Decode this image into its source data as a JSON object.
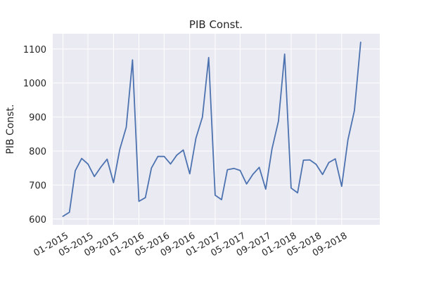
{
  "chart_data": {
    "type": "line",
    "title": "PIB Const.",
    "xlabel": "",
    "ylabel": "PIB Const.",
    "grid": true,
    "ylim": [
      583,
      1145
    ],
    "xlim": [
      "2014-11-13",
      "2019-03-03"
    ],
    "y_ticks": [
      600,
      700,
      800,
      900,
      1000,
      1100
    ],
    "x_ticks": [
      {
        "date": "2015-01-01",
        "label": "01-2015"
      },
      {
        "date": "2015-05-01",
        "label": "05-2015"
      },
      {
        "date": "2015-09-01",
        "label": "09-2015"
      },
      {
        "date": "2016-01-01",
        "label": "01-2016"
      },
      {
        "date": "2016-05-01",
        "label": "05-2016"
      },
      {
        "date": "2016-09-01",
        "label": "09-2016"
      },
      {
        "date": "2017-01-01",
        "label": "01-2017"
      },
      {
        "date": "2017-05-01",
        "label": "05-2017"
      },
      {
        "date": "2017-09-01",
        "label": "09-2017"
      },
      {
        "date": "2018-01-01",
        "label": "01-2018"
      },
      {
        "date": "2018-05-01",
        "label": "05-2018"
      },
      {
        "date": "2018-09-01",
        "label": "09-2018"
      }
    ],
    "series": [
      {
        "color": "#4c72b0",
        "x": [
          "2015-01-01",
          "2015-02-01",
          "2015-03-01",
          "2015-04-01",
          "2015-05-01",
          "2015-06-01",
          "2015-07-01",
          "2015-08-01",
          "2015-09-01",
          "2015-10-01",
          "2015-11-01",
          "2015-12-01",
          "2016-01-01",
          "2016-02-01",
          "2016-03-01",
          "2016-04-01",
          "2016-05-01",
          "2016-06-01",
          "2016-07-01",
          "2016-08-01",
          "2016-09-01",
          "2016-10-01",
          "2016-11-01",
          "2016-12-01",
          "2017-01-01",
          "2017-02-01",
          "2017-03-01",
          "2017-04-01",
          "2017-05-01",
          "2017-06-01",
          "2017-07-01",
          "2017-08-01",
          "2017-09-01",
          "2017-10-01",
          "2017-11-01",
          "2017-12-01",
          "2018-01-01",
          "2018-02-01",
          "2018-03-01",
          "2018-04-01",
          "2018-05-01",
          "2018-06-01",
          "2018-07-01",
          "2018-08-01",
          "2018-09-01",
          "2018-10-01",
          "2018-11-01",
          "2018-12-01"
        ],
        "values": [
          608,
          620,
          742,
          778,
          762,
          725,
          752,
          776,
          707,
          805,
          870,
          1068,
          652,
          663,
          750,
          784,
          784,
          762,
          788,
          803,
          733,
          838,
          900,
          1075,
          670,
          657,
          745,
          749,
          743,
          703,
          731,
          752,
          688,
          806,
          888,
          1085,
          691,
          677,
          773,
          774,
          761,
          731,
          766,
          777,
          696,
          833,
          919,
          1120
        ]
      }
    ]
  }
}
